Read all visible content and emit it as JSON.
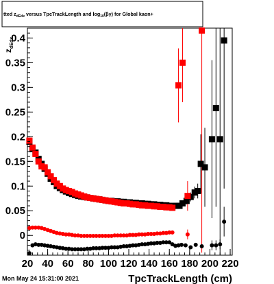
{
  "header": {
    "title_pre": "tted  z",
    "title_z_sub": "dEdx",
    "title_mid": "  versus TpcTrackLength and log",
    "title_log_sub": "10",
    "title_post": "(βγ) for Global kaon+"
  },
  "footer": {
    "date": "Mon May 24 15:31:00 2021"
  },
  "colors": {
    "series_black": "#000000",
    "series_red": "#ff0000"
  },
  "chart_data": {
    "type": "scatter",
    "xlabel": "TpcTrackLength (cm)",
    "ylabel_main": "z",
    "ylabel_sub": "dEdx",
    "xlim": [
      20,
      222
    ],
    "ylim": [
      -0.04,
      0.42
    ],
    "x_ticks": [
      {
        "v": 20,
        "label": "20"
      },
      {
        "v": 40,
        "label": "40"
      },
      {
        "v": 60,
        "label": "60"
      },
      {
        "v": 80,
        "label": "80"
      },
      {
        "v": 100,
        "label": "100"
      },
      {
        "v": 120,
        "label": "120"
      },
      {
        "v": 140,
        "label": "140"
      },
      {
        "v": 160,
        "label": "160"
      },
      {
        "v": 180,
        "label": "180"
      },
      {
        "v": 200,
        "label": "200"
      },
      {
        "v": 220,
        "label": "220"
      }
    ],
    "y_ticks": [
      {
        "v": 0,
        "label": "0"
      },
      {
        "v": 0.05,
        "label": "0.05"
      },
      {
        "v": 0.1,
        "label": "0.1"
      },
      {
        "v": 0.15,
        "label": "0.15"
      },
      {
        "v": 0.2,
        "label": "0.2"
      },
      {
        "v": 0.25,
        "label": "0.25"
      },
      {
        "v": 0.3,
        "label": "0.3"
      },
      {
        "v": 0.35,
        "label": "0.35"
      },
      {
        "v": 0.4,
        "label": "0.4"
      }
    ],
    "series": [
      {
        "color": "#000000",
        "marker": "square",
        "points": [
          {
            "x": 22,
            "y": 0.19
          },
          {
            "x": 25,
            "y": 0.175
          },
          {
            "x": 28,
            "y": 0.168
          },
          {
            "x": 31,
            "y": 0.155
          },
          {
            "x": 34,
            "y": 0.145
          },
          {
            "x": 37,
            "y": 0.135
          },
          {
            "x": 40,
            "y": 0.125
          },
          {
            "x": 43,
            "y": 0.115
          },
          {
            "x": 46,
            "y": 0.108
          },
          {
            "x": 49,
            "y": 0.1
          },
          {
            "x": 52,
            "y": 0.096
          },
          {
            "x": 55,
            "y": 0.092
          },
          {
            "x": 58,
            "y": 0.089
          },
          {
            "x": 61,
            "y": 0.086
          },
          {
            "x": 64,
            "y": 0.084
          },
          {
            "x": 67,
            "y": 0.082
          },
          {
            "x": 70,
            "y": 0.08
          },
          {
            "x": 73,
            "y": 0.079
          },
          {
            "x": 76,
            "y": 0.078
          },
          {
            "x": 79,
            "y": 0.077
          },
          {
            "x": 82,
            "y": 0.076
          },
          {
            "x": 85,
            "y": 0.075
          },
          {
            "x": 88,
            "y": 0.074
          },
          {
            "x": 91,
            "y": 0.073
          },
          {
            "x": 94,
            "y": 0.072
          },
          {
            "x": 97,
            "y": 0.071
          },
          {
            "x": 100,
            "y": 0.07
          },
          {
            "x": 103,
            "y": 0.07
          },
          {
            "x": 106,
            "y": 0.069
          },
          {
            "x": 109,
            "y": 0.069
          },
          {
            "x": 112,
            "y": 0.068
          },
          {
            "x": 115,
            "y": 0.068
          },
          {
            "x": 118,
            "y": 0.067
          },
          {
            "x": 121,
            "y": 0.067
          },
          {
            "x": 124,
            "y": 0.066
          },
          {
            "x": 127,
            "y": 0.066
          },
          {
            "x": 130,
            "y": 0.065
          },
          {
            "x": 133,
            "y": 0.065
          },
          {
            "x": 136,
            "y": 0.064
          },
          {
            "x": 139,
            "y": 0.064
          },
          {
            "x": 142,
            "y": 0.063
          },
          {
            "x": 145,
            "y": 0.063
          },
          {
            "x": 148,
            "y": 0.062
          },
          {
            "x": 151,
            "y": 0.062
          },
          {
            "x": 154,
            "y": 0.061
          },
          {
            "x": 157,
            "y": 0.061
          },
          {
            "x": 160,
            "y": 0.06
          },
          {
            "x": 163,
            "y": 0.059
          },
          {
            "x": 166,
            "y": 0.06
          },
          {
            "x": 170,
            "y": 0.06,
            "err": 0.005
          },
          {
            "x": 173,
            "y": 0.065,
            "err": 0.006
          },
          {
            "x": 177,
            "y": 0.07,
            "err": 0.007
          },
          {
            "x": 181,
            "y": 0.078,
            "err": 0.009
          },
          {
            "x": 185,
            "y": 0.087,
            "err": 0.012
          },
          {
            "x": 188,
            "y": 0.09,
            "err": 0.015
          },
          {
            "x": 191,
            "y": 0.145,
            "err": 0.06
          },
          {
            "x": 195,
            "y": 0.138,
            "err": 0.08
          },
          {
            "x": 202,
            "y": 0.195,
            "err": 0.16
          },
          {
            "x": 206,
            "y": 0.258,
            "err": 0.2
          },
          {
            "x": 210,
            "y": 0.195,
            "err": 0.24
          },
          {
            "x": 214,
            "y": 0.395,
            "err": 0.3
          }
        ]
      },
      {
        "color": "#ff0000",
        "marker": "square",
        "points": [
          {
            "x": 22,
            "y": 0.192
          },
          {
            "x": 25,
            "y": 0.178
          },
          {
            "x": 28,
            "y": 0.165
          },
          {
            "x": 31,
            "y": 0.15
          },
          {
            "x": 34,
            "y": 0.14
          },
          {
            "x": 37,
            "y": 0.138
          },
          {
            "x": 40,
            "y": 0.128
          },
          {
            "x": 43,
            "y": 0.12
          },
          {
            "x": 46,
            "y": 0.112
          },
          {
            "x": 49,
            "y": 0.105
          },
          {
            "x": 52,
            "y": 0.1
          },
          {
            "x": 55,
            "y": 0.095
          },
          {
            "x": 58,
            "y": 0.092
          },
          {
            "x": 61,
            "y": 0.09
          },
          {
            "x": 64,
            "y": 0.088
          },
          {
            "x": 67,
            "y": 0.085
          },
          {
            "x": 70,
            "y": 0.083
          },
          {
            "x": 73,
            "y": 0.081
          },
          {
            "x": 76,
            "y": 0.079
          },
          {
            "x": 79,
            "y": 0.077
          },
          {
            "x": 82,
            "y": 0.076
          },
          {
            "x": 85,
            "y": 0.075
          },
          {
            "x": 88,
            "y": 0.074
          },
          {
            "x": 91,
            "y": 0.073
          },
          {
            "x": 94,
            "y": 0.072
          },
          {
            "x": 97,
            "y": 0.071
          },
          {
            "x": 100,
            "y": 0.07
          },
          {
            "x": 103,
            "y": 0.069
          },
          {
            "x": 106,
            "y": 0.068
          },
          {
            "x": 109,
            "y": 0.067
          },
          {
            "x": 112,
            "y": 0.066
          },
          {
            "x": 115,
            "y": 0.065
          },
          {
            "x": 118,
            "y": 0.065
          },
          {
            "x": 121,
            "y": 0.064
          },
          {
            "x": 124,
            "y": 0.063
          },
          {
            "x": 127,
            "y": 0.063
          },
          {
            "x": 130,
            "y": 0.062
          },
          {
            "x": 133,
            "y": 0.061
          },
          {
            "x": 136,
            "y": 0.061
          },
          {
            "x": 139,
            "y": 0.06
          },
          {
            "x": 142,
            "y": 0.06
          },
          {
            "x": 145,
            "y": 0.059
          },
          {
            "x": 148,
            "y": 0.059
          },
          {
            "x": 151,
            "y": 0.058
          },
          {
            "x": 154,
            "y": 0.058
          },
          {
            "x": 157,
            "y": 0.057
          },
          {
            "x": 160,
            "y": 0.057
          },
          {
            "x": 163,
            "y": 0.056
          },
          {
            "x": 169,
            "y": 0.304,
            "err": 0.075
          },
          {
            "x": 173,
            "y": 0.35,
            "err": 0.08
          },
          {
            "x": 178,
            "y": 0.08,
            "err": 0.03
          },
          {
            "x": 192,
            "y": 0.415,
            "err": 0.45
          }
        ]
      },
      {
        "color": "#ff0000",
        "marker": "circle",
        "points": [
          {
            "x": 22,
            "y": 0.015
          },
          {
            "x": 25,
            "y": 0.016
          },
          {
            "x": 28,
            "y": 0.016
          },
          {
            "x": 31,
            "y": 0.016
          },
          {
            "x": 34,
            "y": 0.015
          },
          {
            "x": 37,
            "y": 0.013
          },
          {
            "x": 40,
            "y": 0.011
          },
          {
            "x": 43,
            "y": 0.009
          },
          {
            "x": 46,
            "y": 0.007
          },
          {
            "x": 49,
            "y": 0.005
          },
          {
            "x": 52,
            "y": 0.004
          },
          {
            "x": 55,
            "y": 0.003
          },
          {
            "x": 58,
            "y": 0.002
          },
          {
            "x": 61,
            "y": 0.002
          },
          {
            "x": 64,
            "y": 0.001
          },
          {
            "x": 67,
            "y": 0.0
          },
          {
            "x": 70,
            "y": 0.0
          },
          {
            "x": 73,
            "y": -0.001
          },
          {
            "x": 76,
            "y": -0.001
          },
          {
            "x": 79,
            "y": -0.001
          },
          {
            "x": 82,
            "y": -0.001
          },
          {
            "x": 85,
            "y": -0.001
          },
          {
            "x": 88,
            "y": -0.001
          },
          {
            "x": 91,
            "y": -0.001
          },
          {
            "x": 94,
            "y": -0.001
          },
          {
            "x": 97,
            "y": -0.001
          },
          {
            "x": 100,
            "y": -0.001
          },
          {
            "x": 103,
            "y": -0.001
          },
          {
            "x": 106,
            "y": 0.0
          },
          {
            "x": 109,
            "y": 0.0
          },
          {
            "x": 112,
            "y": 0.0
          },
          {
            "x": 115,
            "y": 0.0
          },
          {
            "x": 118,
            "y": 0.0
          },
          {
            "x": 121,
            "y": 0.001
          },
          {
            "x": 124,
            "y": 0.001
          },
          {
            "x": 127,
            "y": 0.001
          },
          {
            "x": 130,
            "y": 0.002
          },
          {
            "x": 133,
            "y": 0.002
          },
          {
            "x": 136,
            "y": 0.002
          },
          {
            "x": 139,
            "y": 0.003
          },
          {
            "x": 142,
            "y": 0.003
          },
          {
            "x": 145,
            "y": 0.003
          },
          {
            "x": 148,
            "y": 0.004
          },
          {
            "x": 151,
            "y": 0.004
          },
          {
            "x": 154,
            "y": 0.005
          },
          {
            "x": 157,
            "y": 0.005
          },
          {
            "x": 160,
            "y": 0.006
          },
          {
            "x": 163,
            "y": 0.006
          },
          {
            "x": 178,
            "y": 0.002,
            "err": 0.01
          }
        ]
      },
      {
        "color": "#000000",
        "marker": "circle",
        "points": [
          {
            "x": 22,
            "y": -0.036
          },
          {
            "x": 25,
            "y": -0.02
          },
          {
            "x": 28,
            "y": -0.018
          },
          {
            "x": 31,
            "y": -0.019
          },
          {
            "x": 34,
            "y": -0.019
          },
          {
            "x": 37,
            "y": -0.02
          },
          {
            "x": 40,
            "y": -0.021
          },
          {
            "x": 43,
            "y": -0.022
          },
          {
            "x": 46,
            "y": -0.023
          },
          {
            "x": 49,
            "y": -0.024
          },
          {
            "x": 52,
            "y": -0.025
          },
          {
            "x": 55,
            "y": -0.026
          },
          {
            "x": 58,
            "y": -0.027
          },
          {
            "x": 61,
            "y": -0.027
          },
          {
            "x": 64,
            "y": -0.028
          },
          {
            "x": 67,
            "y": -0.028
          },
          {
            "x": 70,
            "y": -0.028
          },
          {
            "x": 73,
            "y": -0.028
          },
          {
            "x": 76,
            "y": -0.028
          },
          {
            "x": 79,
            "y": -0.027
          },
          {
            "x": 82,
            "y": -0.027
          },
          {
            "x": 85,
            "y": -0.026
          },
          {
            "x": 88,
            "y": -0.026
          },
          {
            "x": 91,
            "y": -0.026
          },
          {
            "x": 94,
            "y": -0.025
          },
          {
            "x": 97,
            "y": -0.025
          },
          {
            "x": 100,
            "y": -0.025
          },
          {
            "x": 103,
            "y": -0.024
          },
          {
            "x": 106,
            "y": -0.024
          },
          {
            "x": 109,
            "y": -0.024
          },
          {
            "x": 112,
            "y": -0.023
          },
          {
            "x": 115,
            "y": -0.022
          },
          {
            "x": 118,
            "y": -0.022
          },
          {
            "x": 121,
            "y": -0.021
          },
          {
            "x": 124,
            "y": -0.02
          },
          {
            "x": 127,
            "y": -0.02
          },
          {
            "x": 130,
            "y": -0.019
          },
          {
            "x": 133,
            "y": -0.018
          },
          {
            "x": 136,
            "y": -0.018
          },
          {
            "x": 139,
            "y": -0.017
          },
          {
            "x": 142,
            "y": -0.016
          },
          {
            "x": 145,
            "y": -0.016
          },
          {
            "x": 148,
            "y": -0.015
          },
          {
            "x": 151,
            "y": -0.015
          },
          {
            "x": 154,
            "y": -0.014
          },
          {
            "x": 157,
            "y": -0.014
          },
          {
            "x": 160,
            "y": -0.014
          },
          {
            "x": 163,
            "y": -0.018
          },
          {
            "x": 166,
            "y": -0.021
          },
          {
            "x": 169,
            "y": -0.02
          },
          {
            "x": 172,
            "y": -0.019
          },
          {
            "x": 176,
            "y": -0.02
          },
          {
            "x": 181,
            "y": -0.024
          },
          {
            "x": 186,
            "y": -0.019
          },
          {
            "x": 192,
            "y": -0.022
          },
          {
            "x": 202,
            "y": -0.02,
            "err": 0.01
          },
          {
            "x": 206,
            "y": -0.02,
            "err": 0.01
          },
          {
            "x": 210,
            "y": -0.018,
            "err": 0.01
          },
          {
            "x": 214,
            "y": 0.028,
            "err": 0.03
          }
        ]
      }
    ]
  }
}
